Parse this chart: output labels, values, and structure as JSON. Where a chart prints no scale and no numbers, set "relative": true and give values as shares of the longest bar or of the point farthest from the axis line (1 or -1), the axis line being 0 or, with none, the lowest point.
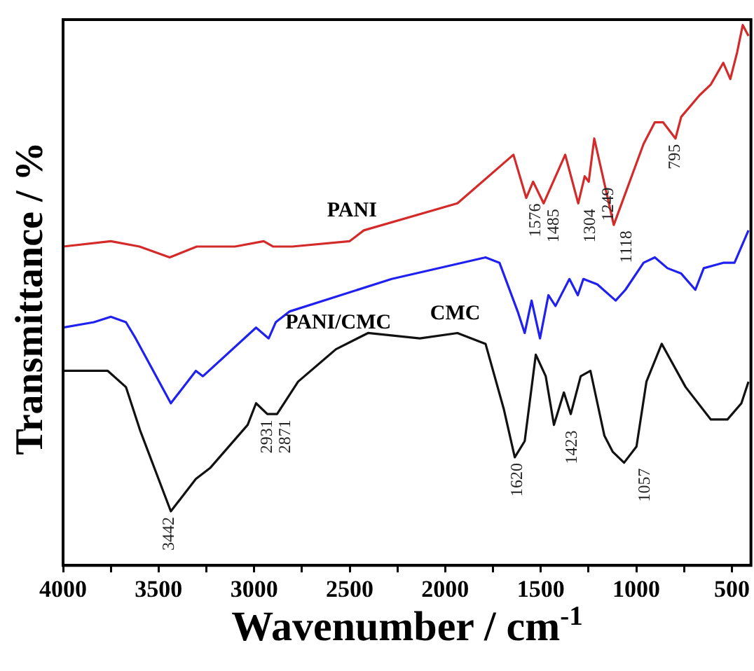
{
  "chart_data": {
    "type": "line",
    "relative": true,
    "xlabel": "Wavenumber / cm$^{-1}$",
    "ylabel": "Transmittance / %",
    "xlim": [
      4000,
      400
    ],
    "xticks": [
      4000,
      {
        "value": 3750,
        "label": null
      },
      3500,
      {
        "value": 3250,
        "label": null
      },
      3000,
      {
        "value": 2750,
        "label": null
      },
      2500,
      {
        "value": 2250,
        "label": null
      },
      2000,
      {
        "value": 1750,
        "label": null
      },
      1500,
      {
        "value": 1250,
        "label": null
      },
      1000,
      {
        "value": 750,
        "label": null
      },
      500
    ],
    "grid": false,
    "legend": false,
    "marker": "none",
    "line_style": "solid",
    "series": [
      {
        "name": "PANI",
        "color": "#d42a2a",
        "x": [
          4000,
          3750,
          3600,
          3442,
          3300,
          3100,
          2950,
          2900,
          2800,
          2500,
          2426,
          1936,
          1643,
          1576,
          1540,
          1485,
          1372,
          1304,
          1270,
          1249,
          1220,
          1118,
          962,
          903,
          860,
          795,
          765,
          669,
          610,
          545,
          508,
          472,
          443,
          413
        ],
        "values": [
          0.59,
          0.6,
          0.59,
          0.57,
          0.59,
          0.59,
          0.6,
          0.59,
          0.59,
          0.6,
          0.62,
          0.67,
          0.76,
          0.68,
          0.71,
          0.67,
          0.76,
          0.67,
          0.72,
          0.71,
          0.79,
          0.63,
          0.78,
          0.82,
          0.82,
          0.79,
          0.83,
          0.87,
          0.89,
          0.93,
          0.9,
          0.95,
          1,
          0.98
        ]
      },
      {
        "name": "PANI/CMC",
        "color": "#2020f0",
        "x": [
          4000,
          3839,
          3750,
          3671,
          3620,
          3436,
          3305,
          3268,
          2990,
          2924,
          2887,
          2814,
          2280,
          1789,
          1716,
          1621,
          1584,
          1548,
          1504,
          1460,
          1423,
          1350,
          1306,
          1277,
          1204,
          1108,
          1057,
          962,
          903,
          837,
          765,
          691,
          647,
          545,
          486,
          413
        ],
        "values": [
          0.44,
          0.45,
          0.46,
          0.45,
          0.42,
          0.3,
          0.36,
          0.35,
          0.44,
          0.42,
          0.45,
          0.47,
          0.53,
          0.57,
          0.56,
          0.47,
          0.43,
          0.49,
          0.42,
          0.5,
          0.48,
          0.53,
          0.5,
          0.53,
          0.52,
          0.49,
          0.51,
          0.56,
          0.57,
          0.55,
          0.54,
          0.51,
          0.55,
          0.56,
          0.56,
          0.62
        ]
      },
      {
        "name": "CMC",
        "color": "#111111",
        "x": [
          4000,
          3766,
          3671,
          3597,
          3436,
          3305,
          3231,
          3034,
          2990,
          2931,
          2880,
          2770,
          2572,
          2404,
          2133,
          1936,
          1789,
          1694,
          1636,
          1584,
          1526,
          1474,
          1431,
          1379,
          1343,
          1291,
          1240,
          1167,
          1123,
          1064,
          999,
          947,
          867,
          742,
          610,
          523,
          450,
          413
        ],
        "values": [
          0.36,
          0.36,
          0.33,
          0.25,
          0.1,
          0.16,
          0.18,
          0.26,
          0.3,
          0.28,
          0.28,
          0.34,
          0.4,
          0.43,
          0.42,
          0.43,
          0.41,
          0.29,
          0.2,
          0.23,
          0.39,
          0.35,
          0.26,
          0.32,
          0.28,
          0.35,
          0.36,
          0.24,
          0.21,
          0.19,
          0.22,
          0.34,
          0.41,
          0.33,
          0.27,
          0.27,
          0.3,
          0.34
        ]
      }
    ],
    "annotations": [
      {
        "text": "1576",
        "x": 1576,
        "y": 0.68
      },
      {
        "text": "1485",
        "x": 1485,
        "y": 0.67
      },
      {
        "text": "1304",
        "x": 1304,
        "y": 0.67
      },
      {
        "text": "1249",
        "x": 1249,
        "y": 0.71
      },
      {
        "text": "1118",
        "x": 1118,
        "y": 0.63
      },
      {
        "text": "795",
        "x": 795,
        "y": 0.79
      },
      {
        "text": "2931",
        "x": 2931,
        "y": 0.28
      },
      {
        "text": "2871",
        "x": 2871,
        "y": 0.28
      },
      {
        "text": "3442",
        "x": 3442,
        "y": 0.1
      },
      {
        "text": "1620",
        "x": 1620,
        "y": 0.2
      },
      {
        "text": "1423",
        "x": 1423,
        "y": 0.26
      },
      {
        "text": "1057",
        "x": 1057,
        "y": 0.19
      }
    ]
  }
}
